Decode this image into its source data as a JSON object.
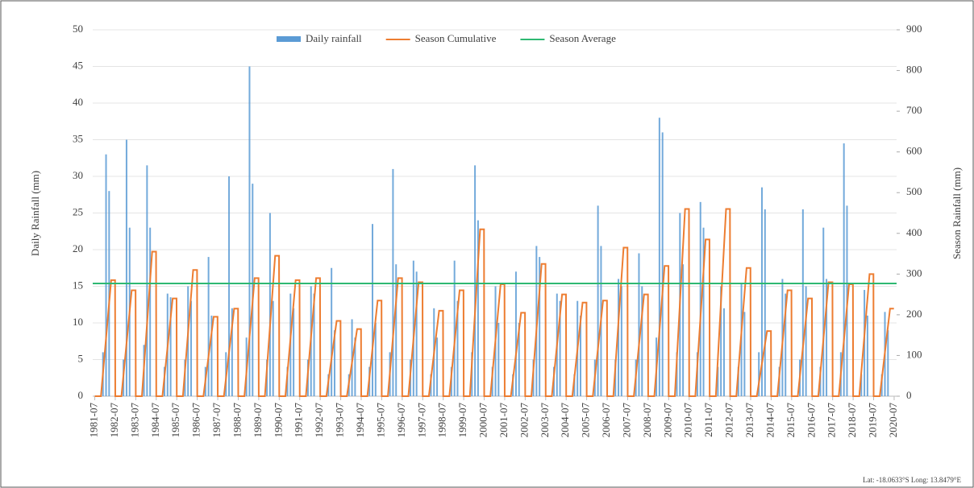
{
  "chart_data": {
    "type": "combo",
    "y_label": "Daily Rainfall (mm)",
    "y2_label": "Season Rainfall (mm)",
    "annotation": "Lat: -18.0633°S Long: 13.8479°E",
    "xlim": [
      1981.4,
      2020.62
    ],
    "ylim": [
      0,
      50
    ],
    "y2lim": [
      0,
      900
    ],
    "yticks": [
      0,
      5,
      10,
      15,
      20,
      25,
      30,
      35,
      40,
      45,
      50
    ],
    "y2ticks": [
      0,
      100,
      200,
      300,
      400,
      500,
      600,
      700,
      800,
      900
    ],
    "xticks": [
      {
        "value": 1981.5,
        "label": "1981-07"
      },
      {
        "value": 1982.5,
        "label": "1982-07"
      },
      {
        "value": 1983.5,
        "label": "1983-07"
      },
      {
        "value": 1984.5,
        "label": "1984-07"
      },
      {
        "value": 1985.5,
        "label": "1985-07"
      },
      {
        "value": 1986.5,
        "label": "1986-07"
      },
      {
        "value": 1987.5,
        "label": "1987-07"
      },
      {
        "value": 1988.5,
        "label": "1988-07"
      },
      {
        "value": 1989.5,
        "label": "1989-07"
      },
      {
        "value": 1990.5,
        "label": "1990-07"
      },
      {
        "value": 1991.5,
        "label": "1991-07"
      },
      {
        "value": 1992.5,
        "label": "1992-07"
      },
      {
        "value": 1993.5,
        "label": "1993-07"
      },
      {
        "value": 1994.5,
        "label": "1994-07"
      },
      {
        "value": 1995.5,
        "label": "1995-07"
      },
      {
        "value": 1996.5,
        "label": "1996-07"
      },
      {
        "value": 1997.5,
        "label": "1997-07"
      },
      {
        "value": 1998.5,
        "label": "1998-07"
      },
      {
        "value": 1999.5,
        "label": "1999-07"
      },
      {
        "value": 2000.5,
        "label": "2000-07"
      },
      {
        "value": 2001.5,
        "label": "2001-07"
      },
      {
        "value": 2002.5,
        "label": "2002-07"
      },
      {
        "value": 2003.5,
        "label": "2003-07"
      },
      {
        "value": 2004.5,
        "label": "2004-07"
      },
      {
        "value": 2005.5,
        "label": "2005-07"
      },
      {
        "value": 2006.5,
        "label": "2006-07"
      },
      {
        "value": 2007.5,
        "label": "2007-07"
      },
      {
        "value": 2008.5,
        "label": "2008-07"
      },
      {
        "value": 2009.5,
        "label": "2009-07"
      },
      {
        "value": 2010.5,
        "label": "2010-07"
      },
      {
        "value": 2011.5,
        "label": "2011-07"
      },
      {
        "value": 2012.5,
        "label": "2012-07"
      },
      {
        "value": 2013.5,
        "label": "2013-07"
      },
      {
        "value": 2014.5,
        "label": "2014-07"
      },
      {
        "value": 2015.5,
        "label": "2015-07"
      },
      {
        "value": 2016.5,
        "label": "2016-07"
      },
      {
        "value": 2017.5,
        "label": "2017-07"
      },
      {
        "value": 2018.5,
        "label": "2018-07"
      },
      {
        "value": 2019.5,
        "label": "2019-07"
      },
      {
        "value": 2020.5,
        "label": "2020-07"
      }
    ],
    "series": [
      {
        "name": "Daily rainfall",
        "type": "bar",
        "axis": "y",
        "color": "#5b9bd5",
        "x": [
          1981.9,
          1982.05,
          1982.2,
          1982.9,
          1983.05,
          1983.2,
          1983.9,
          1984.05,
          1984.2,
          1984.9,
          1985.05,
          1985.2,
          1985.9,
          1986.05,
          1986.2,
          1986.9,
          1987.05,
          1987.2,
          1987.9,
          1988.05,
          1988.2,
          1988.9,
          1989.05,
          1989.2,
          1989.9,
          1990.05,
          1990.2,
          1990.9,
          1991.05,
          1991.2,
          1991.9,
          1992.05,
          1992.2,
          1992.9,
          1993.05,
          1993.2,
          1993.9,
          1994.05,
          1994.2,
          1994.9,
          1995.05,
          1995.2,
          1995.9,
          1996.05,
          1996.2,
          1996.9,
          1997.05,
          1997.2,
          1997.9,
          1998.05,
          1998.2,
          1998.9,
          1999.05,
          1999.2,
          1999.9,
          2000.05,
          2000.2,
          2000.9,
          2001.05,
          2001.2,
          2001.9,
          2002.05,
          2002.2,
          2002.9,
          2003.05,
          2003.2,
          2003.9,
          2004.05,
          2004.2,
          2004.9,
          2005.05,
          2005.2,
          2005.9,
          2006.05,
          2006.2,
          2006.9,
          2007.05,
          2007.2,
          2007.9,
          2008.05,
          2008.2,
          2008.9,
          2009.05,
          2009.2,
          2009.9,
          2010.05,
          2010.2,
          2010.9,
          2011.05,
          2011.2,
          2011.9,
          2012.05,
          2012.2,
          2012.9,
          2013.05,
          2013.2,
          2013.9,
          2014.05,
          2014.2,
          2014.9,
          2015.05,
          2015.2,
          2015.9,
          2016.05,
          2016.2,
          2016.9,
          2017.05,
          2017.2,
          2017.9,
          2018.05,
          2018.2,
          2018.9,
          2019.05,
          2019.2,
          2019.9,
          2020.05,
          2020.2
        ],
        "values": [
          6,
          33,
          28,
          5,
          35,
          23,
          7,
          31.5,
          23,
          4,
          14,
          13.5,
          5,
          15,
          13,
          4,
          19,
          11,
          6,
          30,
          12,
          8,
          45,
          29,
          5,
          25,
          13,
          4,
          14,
          12,
          5,
          15,
          14,
          3,
          17.5,
          9,
          3,
          10.5,
          8,
          4,
          23.5,
          10,
          6,
          31,
          18,
          5,
          18.5,
          17,
          3,
          12,
          8,
          4,
          18.5,
          13,
          6,
          31.5,
          24,
          4,
          15,
          10,
          3,
          17,
          10,
          5,
          20.5,
          19,
          4,
          14,
          13,
          3,
          13,
          11,
          5,
          26,
          20.5,
          5,
          16,
          15,
          5,
          19.5,
          15,
          8,
          38,
          36,
          6,
          25,
          18,
          6,
          26.5,
          23,
          4,
          15,
          12,
          4,
          15.5,
          11.5,
          6,
          28.5,
          25.5,
          4,
          16,
          14,
          5,
          25.5,
          15,
          4,
          23,
          16,
          6,
          34.5,
          26,
          3,
          14.5,
          11,
          3,
          11.5,
          9
        ]
      },
      {
        "name": "Season Cumulative",
        "type": "line",
        "axis": "y2",
        "color": "#ed7d31",
        "x": [
          1981.5,
          1981.8,
          1982.3,
          1982.49,
          1982.5,
          1982.8,
          1983.3,
          1983.49,
          1983.5,
          1983.8,
          1984.3,
          1984.49,
          1984.5,
          1984.8,
          1985.3,
          1985.49,
          1985.5,
          1985.8,
          1986.3,
          1986.49,
          1986.5,
          1986.8,
          1987.3,
          1987.49,
          1987.5,
          1987.8,
          1988.3,
          1988.49,
          1988.5,
          1988.8,
          1989.3,
          1989.49,
          1989.5,
          1989.8,
          1990.3,
          1990.49,
          1990.5,
          1990.8,
          1991.3,
          1991.49,
          1991.5,
          1991.8,
          1992.3,
          1992.49,
          1992.5,
          1992.8,
          1993.3,
          1993.49,
          1993.5,
          1993.8,
          1994.3,
          1994.49,
          1994.5,
          1994.8,
          1995.3,
          1995.49,
          1995.5,
          1995.8,
          1996.3,
          1996.49,
          1996.5,
          1996.8,
          1997.3,
          1997.49,
          1997.5,
          1997.8,
          1998.3,
          1998.49,
          1998.5,
          1998.8,
          1999.3,
          1999.49,
          1999.5,
          1999.8,
          2000.3,
          2000.49,
          2000.5,
          2000.8,
          2001.3,
          2001.49,
          2001.5,
          2001.8,
          2002.3,
          2002.49,
          2002.5,
          2002.8,
          2003.3,
          2003.49,
          2003.5,
          2003.8,
          2004.3,
          2004.49,
          2004.5,
          2004.8,
          2005.3,
          2005.49,
          2005.5,
          2005.8,
          2006.3,
          2006.49,
          2006.5,
          2006.8,
          2007.3,
          2007.49,
          2007.5,
          2007.8,
          2008.3,
          2008.49,
          2008.5,
          2008.8,
          2009.3,
          2009.49,
          2009.5,
          2009.8,
          2010.3,
          2010.49,
          2010.5,
          2010.8,
          2011.3,
          2011.49,
          2011.5,
          2011.8,
          2012.3,
          2012.49,
          2012.5,
          2012.8,
          2013.3,
          2013.49,
          2013.5,
          2013.8,
          2014.3,
          2014.49,
          2014.5,
          2014.8,
          2015.3,
          2015.49,
          2015.5,
          2015.8,
          2016.3,
          2016.49,
          2016.5,
          2016.8,
          2017.3,
          2017.49,
          2017.5,
          2017.8,
          2018.3,
          2018.49,
          2018.5,
          2018.8,
          2019.3,
          2019.49,
          2019.5,
          2019.8,
          2020.3,
          2020.49
        ],
        "values": [
          0,
          0,
          285,
          285,
          0,
          0,
          260,
          260,
          0,
          0,
          355,
          355,
          0,
          0,
          240,
          240,
          0,
          0,
          310,
          310,
          0,
          0,
          195,
          195,
          0,
          0,
          215,
          215,
          0,
          0,
          290,
          290,
          0,
          0,
          345,
          345,
          0,
          0,
          285,
          285,
          0,
          0,
          290,
          290,
          0,
          0,
          185,
          185,
          0,
          0,
          165,
          165,
          0,
          0,
          235,
          235,
          0,
          0,
          290,
          290,
          0,
          0,
          280,
          280,
          0,
          0,
          210,
          210,
          0,
          0,
          260,
          260,
          0,
          0,
          410,
          410,
          0,
          0,
          275,
          275,
          0,
          0,
          205,
          205,
          0,
          0,
          325,
          325,
          0,
          0,
          250,
          250,
          0,
          0,
          230,
          230,
          0,
          0,
          235,
          235,
          0,
          0,
          365,
          365,
          0,
          0,
          250,
          250,
          0,
          0,
          320,
          320,
          0,
          0,
          460,
          460,
          0,
          0,
          385,
          385,
          0,
          0,
          460,
          460,
          0,
          0,
          315,
          315,
          0,
          0,
          160,
          160,
          0,
          0,
          260,
          260,
          0,
          0,
          240,
          240,
          0,
          0,
          280,
          280,
          0,
          0,
          275,
          275,
          0,
          0,
          300,
          300,
          0,
          0,
          215,
          215
        ]
      },
      {
        "name": "Season Average",
        "type": "line",
        "axis": "y2",
        "color": "#2eb872",
        "x": [
          1981.4,
          2020.62
        ],
        "values": [
          277,
          277
        ]
      }
    ]
  }
}
